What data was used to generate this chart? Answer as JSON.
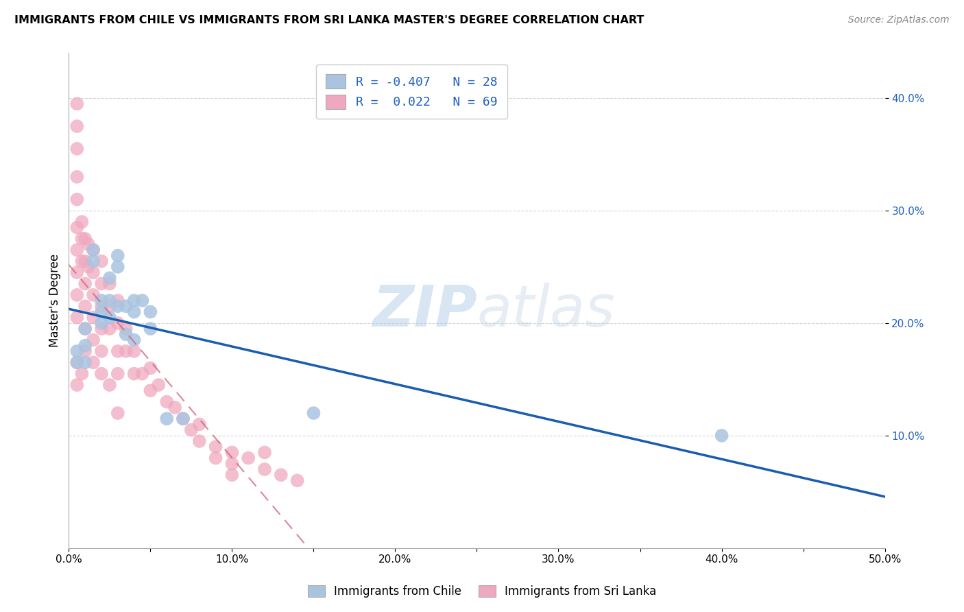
{
  "title": "IMMIGRANTS FROM CHILE VS IMMIGRANTS FROM SRI LANKA MASTER'S DEGREE CORRELATION CHART",
  "source": "Source: ZipAtlas.com",
  "ylabel": "Master's Degree",
  "xlim": [
    0.0,
    0.5
  ],
  "ylim": [
    0.0,
    0.44
  ],
  "xticks": [
    0.0,
    0.05,
    0.1,
    0.15,
    0.2,
    0.25,
    0.3,
    0.35,
    0.4,
    0.45,
    0.5
  ],
  "xtick_labels": [
    "0.0%",
    "",
    "10.0%",
    "",
    "20.0%",
    "",
    "30.0%",
    "",
    "40.0%",
    "",
    "50.0%"
  ],
  "yticks": [
    0.1,
    0.2,
    0.3,
    0.4
  ],
  "ytick_labels": [
    "10.0%",
    "20.0%",
    "30.0%",
    "40.0%"
  ],
  "legend_r_blue": "-0.407",
  "legend_n_blue": "28",
  "legend_r_pink": "0.022",
  "legend_n_pink": "69",
  "blue_color": "#aac4e0",
  "pink_color": "#f0a8be",
  "blue_line_color": "#1a5cb0",
  "pink_line_color": "#d06070",
  "grid_color": "#cccccc",
  "watermark_zip": "ZIP",
  "watermark_atlas": "atlas",
  "blue_scatter_x": [
    0.005,
    0.005,
    0.01,
    0.01,
    0.01,
    0.015,
    0.015,
    0.02,
    0.02,
    0.02,
    0.025,
    0.025,
    0.025,
    0.03,
    0.03,
    0.03,
    0.035,
    0.035,
    0.04,
    0.04,
    0.04,
    0.045,
    0.05,
    0.05,
    0.06,
    0.07,
    0.15,
    0.4
  ],
  "blue_scatter_y": [
    0.175,
    0.165,
    0.195,
    0.18,
    0.165,
    0.265,
    0.255,
    0.22,
    0.21,
    0.2,
    0.24,
    0.22,
    0.205,
    0.26,
    0.25,
    0.215,
    0.215,
    0.19,
    0.22,
    0.21,
    0.185,
    0.22,
    0.21,
    0.195,
    0.115,
    0.115,
    0.12,
    0.1
  ],
  "pink_scatter_x": [
    0.005,
    0.005,
    0.005,
    0.005,
    0.005,
    0.005,
    0.005,
    0.005,
    0.005,
    0.005,
    0.008,
    0.008,
    0.008,
    0.01,
    0.01,
    0.01,
    0.01,
    0.01,
    0.01,
    0.012,
    0.012,
    0.015,
    0.015,
    0.015,
    0.015,
    0.015,
    0.02,
    0.02,
    0.02,
    0.02,
    0.02,
    0.025,
    0.025,
    0.025,
    0.03,
    0.03,
    0.03,
    0.03,
    0.035,
    0.035,
    0.04,
    0.04,
    0.045,
    0.05,
    0.05,
    0.055,
    0.06,
    0.065,
    0.07,
    0.075,
    0.08,
    0.08,
    0.09,
    0.09,
    0.1,
    0.1,
    0.1,
    0.11,
    0.12,
    0.12,
    0.13,
    0.14,
    0.005,
    0.005,
    0.008,
    0.015,
    0.02,
    0.025,
    0.03
  ],
  "pink_scatter_y": [
    0.395,
    0.375,
    0.355,
    0.33,
    0.31,
    0.285,
    0.265,
    0.245,
    0.225,
    0.205,
    0.29,
    0.275,
    0.255,
    0.275,
    0.255,
    0.235,
    0.215,
    0.195,
    0.175,
    0.27,
    0.25,
    0.265,
    0.245,
    0.225,
    0.205,
    0.185,
    0.255,
    0.235,
    0.215,
    0.195,
    0.175,
    0.235,
    0.215,
    0.195,
    0.22,
    0.2,
    0.175,
    0.155,
    0.195,
    0.175,
    0.175,
    0.155,
    0.155,
    0.16,
    0.14,
    0.145,
    0.13,
    0.125,
    0.115,
    0.105,
    0.11,
    0.095,
    0.09,
    0.08,
    0.085,
    0.075,
    0.065,
    0.08,
    0.085,
    0.07,
    0.065,
    0.06,
    0.165,
    0.145,
    0.155,
    0.165,
    0.155,
    0.145,
    0.12
  ]
}
